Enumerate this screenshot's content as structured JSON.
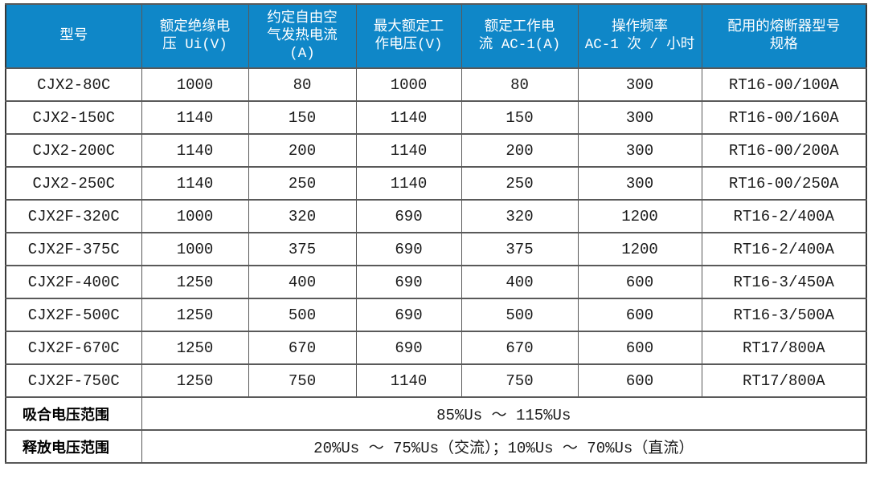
{
  "theme": {
    "header_bg": "#0F87C8",
    "header_text": "#FFFFFF",
    "border_inner": "#595959",
    "border_outer": "#3A3A3A",
    "cell_text": "#1A1A1A",
    "page_bg": "#FFFFFF"
  },
  "table": {
    "columns": [
      "型号",
      "额定绝缘电\n压 Ui(V)",
      "约定自由空\n气发热电流\n(A)",
      "最大额定工\n作电压(V)",
      "额定工作电\n流 AC-1(A)",
      "操作频率\nAC-1 次 / 小时",
      "配用的熔断器型号\n规格"
    ],
    "rows": [
      [
        "CJX2-80C",
        "1000",
        "80",
        "1000",
        "80",
        "300",
        "RT16-00/100A"
      ],
      [
        "CJX2-150C",
        "1140",
        "150",
        "1140",
        "150",
        "300",
        "RT16-00/160A"
      ],
      [
        "CJX2-200C",
        "1140",
        "200",
        "1140",
        "200",
        "300",
        "RT16-00/200A"
      ],
      [
        "CJX2-250C",
        "1140",
        "250",
        "1140",
        "250",
        "300",
        "RT16-00/250A"
      ],
      [
        "CJX2F-320C",
        "1000",
        "320",
        "690",
        "320",
        "1200",
        "RT16-2/400A"
      ],
      [
        "CJX2F-375C",
        "1000",
        "375",
        "690",
        "375",
        "1200",
        "RT16-2/400A"
      ],
      [
        "CJX2F-400C",
        "1250",
        "400",
        "690",
        "400",
        "600",
        "RT16-3/450A"
      ],
      [
        "CJX2F-500C",
        "1250",
        "500",
        "690",
        "500",
        "600",
        "RT16-3/500A"
      ],
      [
        "CJX2F-670C",
        "1250",
        "670",
        "690",
        "670",
        "600",
        "RT17/800A"
      ],
      [
        "CJX2F-750C",
        "1250",
        "750",
        "1140",
        "750",
        "600",
        "RT17/800A"
      ]
    ],
    "footer_rows": [
      {
        "label": "吸合电压范围",
        "value": "85%Us ～ 115%Us"
      },
      {
        "label": "释放电压范围",
        "value": "20%Us ～ 75%Us（交流）；10%Us ～ 70%Us（直流）"
      }
    ]
  }
}
